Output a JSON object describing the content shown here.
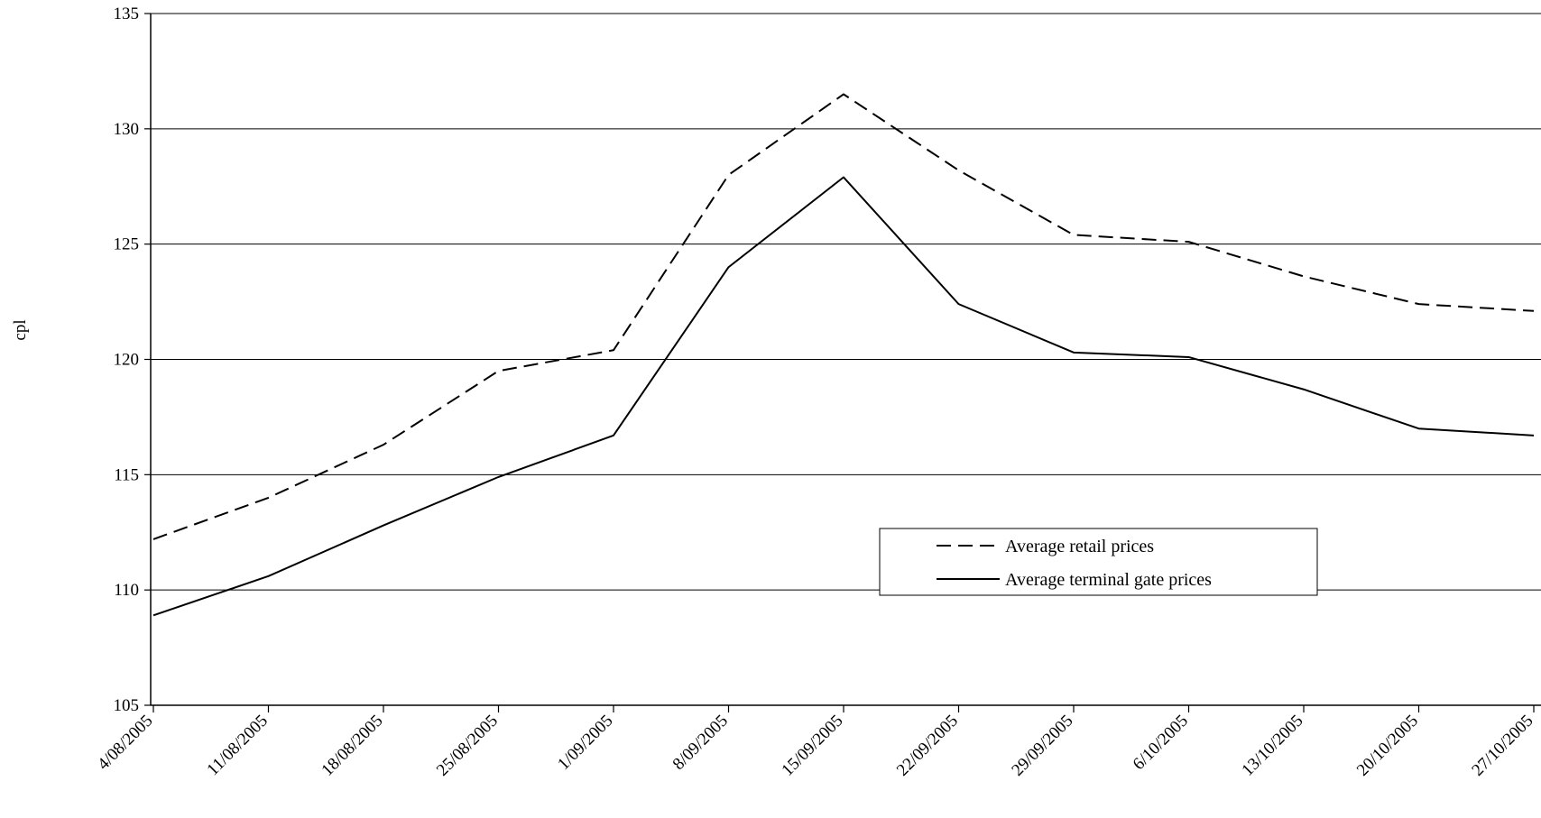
{
  "chart_data": {
    "type": "line",
    "title": "",
    "xlabel": "",
    "ylabel": "cpl",
    "ylim": [
      105,
      135
    ],
    "yticks": [
      "105",
      "110",
      "115",
      "120",
      "125",
      "130",
      "135"
    ],
    "grid": "horizontal",
    "legend_position": "center-right",
    "x": [
      "4/08/2005",
      "11/08/2005",
      "18/08/2005",
      "25/08/2005",
      "1/09/2005",
      "8/09/2005",
      "15/09/2005",
      "22/09/2005",
      "29/09/2005",
      "6/10/2005",
      "13/10/2005",
      "20/10/2005",
      "27/10/2005"
    ],
    "series": [
      {
        "name": "Average retail prices",
        "style": "dashed",
        "color": "#000000",
        "values": [
          112.2,
          114.0,
          116.3,
          119.5,
          120.4,
          128.0,
          131.5,
          128.2,
          125.4,
          125.1,
          123.6,
          122.4,
          122.1
        ]
      },
      {
        "name": "Average terminal gate prices",
        "style": "solid",
        "color": "#000000",
        "values": [
          108.9,
          110.6,
          112.8,
          114.9,
          116.7,
          124.0,
          127.9,
          122.4,
          120.3,
          120.1,
          118.7,
          117.0,
          116.7
        ]
      }
    ]
  }
}
